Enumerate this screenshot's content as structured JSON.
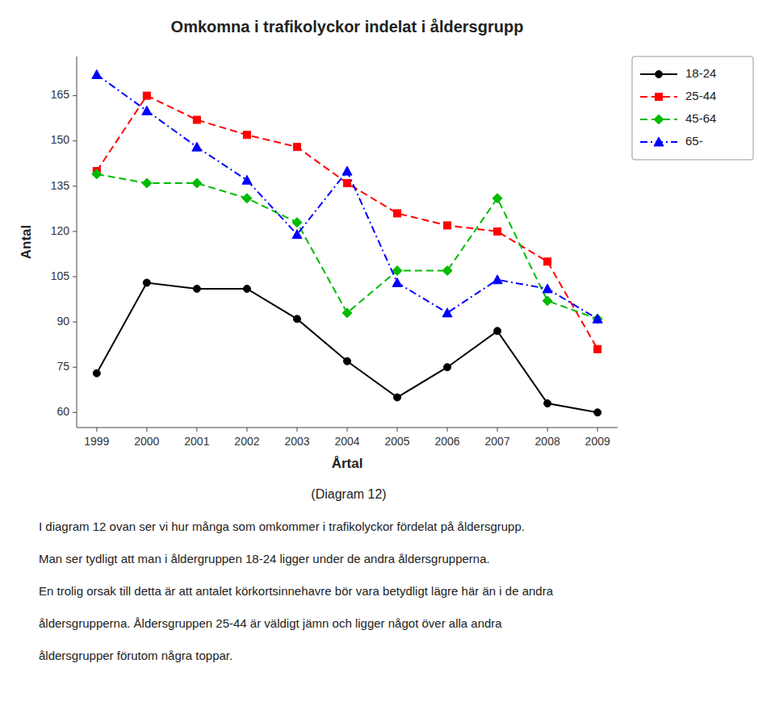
{
  "chart_data": {
    "type": "line",
    "title": "Omkomna i trafikolyckor indelat i åldersgrupp",
    "x_label": "Årtal",
    "y_label": "Antal",
    "x": [
      1999,
      2000,
      2001,
      2002,
      2003,
      2004,
      2005,
      2006,
      2007,
      2008,
      2009
    ],
    "xlim": [
      1998.6,
      2009.4
    ],
    "xticks": [
      1999,
      2000,
      2001,
      2002,
      2003,
      2004,
      2005,
      2006,
      2007,
      2008,
      2009
    ],
    "ylim": [
      55,
      178
    ],
    "yticks": [
      60,
      75,
      90,
      105,
      120,
      135,
      150,
      165
    ],
    "grid": false,
    "legend": "right",
    "series": [
      {
        "name": "18-24",
        "color": "#000000",
        "marker": "circle",
        "line_style": "solid",
        "values": [
          73,
          103,
          101,
          101,
          91,
          77,
          65,
          75,
          87,
          63,
          60
        ]
      },
      {
        "name": "25-44",
        "color": "#ff0000",
        "marker": "square",
        "line_style": "dashed",
        "values": [
          140,
          165,
          157,
          152,
          148,
          136,
          126,
          122,
          120,
          110,
          81
        ]
      },
      {
        "name": "45-64",
        "color": "#00bb00",
        "marker": "diamond",
        "line_style": "dashed",
        "values": [
          139,
          136,
          136,
          131,
          123,
          93,
          107,
          107,
          131,
          97,
          91
        ]
      },
      {
        "name": "65-",
        "color": "#0000ff",
        "marker": "triangle",
        "line_style": "dashdot",
        "values": [
          172,
          160,
          148,
          137,
          119,
          140,
          103,
          93,
          104,
          101,
          91
        ]
      }
    ],
    "annotations": [
      "(Diagram 12)",
      "I diagram 12 ovan ser vi hur många som omkommer i trafikolyckor fördelat på åldersgrupp.",
      "Man ser tydligt att man i åldergruppen 18-24 ligger under de andra åldersgrupperna.",
      "En trolig orsak till detta är att antalet körkortsinnehavre bör vara betydligt lägre här än i de andra",
      "åldersgrupperna. Åldersgruppen 25-44 är väldigt jämn och ligger något över alla andra",
      "åldersgrupper förutom några toppar."
    ]
  }
}
